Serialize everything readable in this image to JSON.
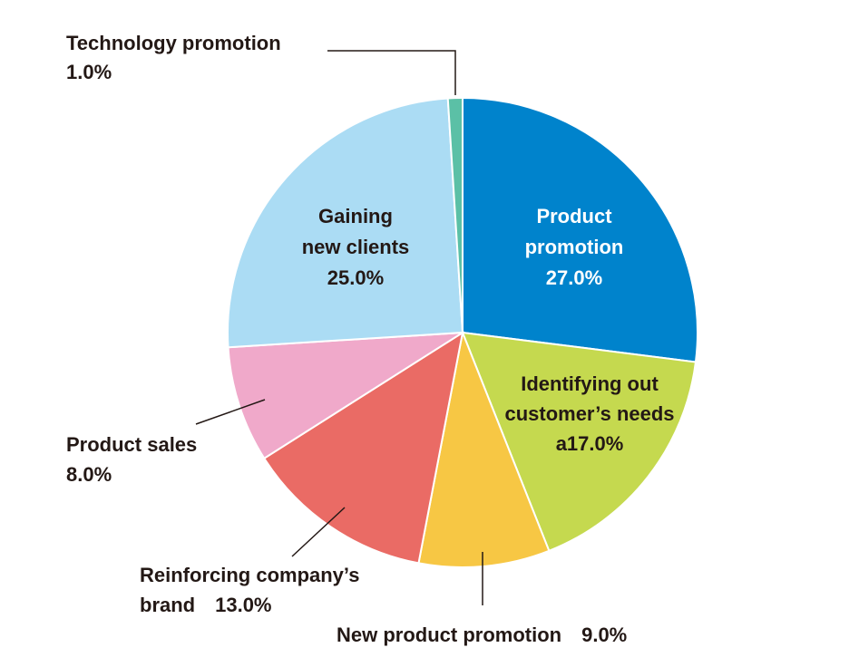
{
  "chart_data": {
    "type": "pie",
    "title": "",
    "start": "12 o'clock, clockwise",
    "slices": [
      {
        "name": "Product promotion",
        "value": 27.0,
        "color": "#0083cc",
        "label_lines": [
          "Product",
          "promotion",
          "27.0%"
        ],
        "label_inside": true,
        "label_color": "#ffffff"
      },
      {
        "name": "Identifying out customer's needs",
        "value": 17.0,
        "color": "#c5d94f",
        "label_lines": [
          "Identifying out",
          "customer’s needs",
          "a17.0%"
        ],
        "label_inside": true,
        "label_color": "#231815"
      },
      {
        "name": "New product promotion",
        "value": 9.0,
        "color": "#f7c744",
        "label_lines": [
          "New product promotion　9.0%"
        ],
        "label_inside": false,
        "label_color": "#231815"
      },
      {
        "name": "Reinforcing company's brand",
        "value": 13.0,
        "color": "#ea6b65",
        "label_lines": [
          "Reinforcing company’s",
          "brand　13.0%"
        ],
        "label_inside": false,
        "label_color": "#231815"
      },
      {
        "name": "Product sales",
        "value": 8.0,
        "color": "#f0a9ca",
        "label_lines": [
          "Product sales",
          "8.0%"
        ],
        "label_inside": false,
        "label_color": "#231815"
      },
      {
        "name": "Gaining new clients",
        "value": 25.0,
        "color": "#abdcf4",
        "label_lines": [
          "Gaining",
          "new clients",
          "25.0%"
        ],
        "label_inside": true,
        "label_color": "#231815"
      },
      {
        "name": "Technology promotion",
        "value": 1.0,
        "color": "#5bc0a6",
        "label_lines": [
          "Technology promotion",
          "1.0%"
        ],
        "label_inside": false,
        "label_color": "#231815"
      }
    ]
  }
}
